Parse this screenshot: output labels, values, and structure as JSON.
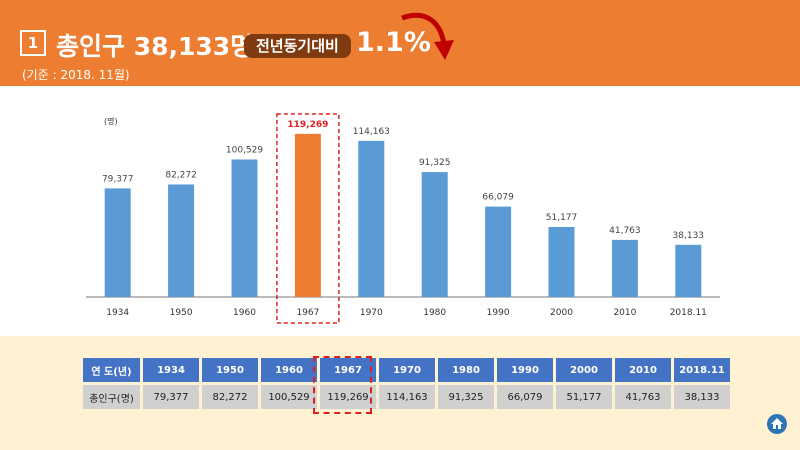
{
  "header": {
    "number": "1",
    "title": "총인구 38,133명",
    "badge": "전년동기대비",
    "change": "1.1%",
    "subtitle": "(기준 : 2018. 11월)"
  },
  "colors": {
    "header_bg": "#ED7D31",
    "bar": "#5B9BD5",
    "bar_highlight": "#ED7D31",
    "table_header": "#4472C4",
    "highlight_border": "#E02020"
  },
  "chart_data": {
    "type": "bar",
    "ylabel": "(명)",
    "categories": [
      "1934",
      "1950",
      "1960",
      "1967",
      "1970",
      "1980",
      "1990",
      "2000",
      "2010",
      "2018.11"
    ],
    "values": [
      79377,
      82272,
      100529,
      119269,
      114163,
      91325,
      66079,
      51177,
      41763,
      38133
    ],
    "labels": [
      "79,377",
      "82,272",
      "100,529",
      "119,269",
      "114,163",
      "91,325",
      "66,079",
      "51,177",
      "41,763",
      "38,133"
    ],
    "highlight_index": 3,
    "ylim": [
      0,
      125000
    ],
    "grid": false
  },
  "table": {
    "row_header_year": "연  도(년)",
    "row_header_pop": "총인구(명)"
  },
  "icons": {
    "home": "home-icon",
    "arrow": "down-arrow-icon"
  }
}
